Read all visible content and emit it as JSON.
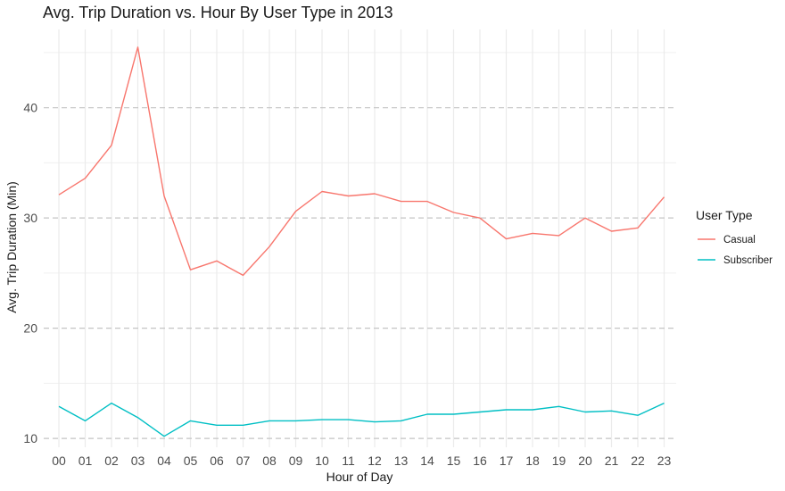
{
  "chart_data": {
    "type": "line",
    "title": "Avg. Trip Duration vs. Hour By User Type in 2013",
    "xlabel": "Hour of Day",
    "ylabel": "Avg. Trip Duration (Min)",
    "categories": [
      "00",
      "01",
      "02",
      "03",
      "04",
      "05",
      "06",
      "07",
      "08",
      "09",
      "10",
      "11",
      "12",
      "13",
      "14",
      "15",
      "16",
      "17",
      "18",
      "19",
      "20",
      "21",
      "22",
      "23"
    ],
    "yticks": [
      10,
      20,
      30,
      40
    ],
    "ylim": [
      9.2,
      47.1
    ],
    "grid": true,
    "legend": {
      "title": "User Type",
      "position": "right"
    },
    "series": [
      {
        "name": "Casual",
        "color": "#F8766D",
        "values": [
          32.1,
          33.6,
          36.6,
          45.5,
          32.0,
          25.3,
          26.1,
          24.8,
          27.4,
          30.6,
          32.4,
          32.0,
          32.2,
          31.5,
          31.5,
          30.5,
          30.0,
          28.1,
          28.6,
          28.4,
          30.0,
          28.8,
          29.1,
          31.9
        ]
      },
      {
        "name": "Subscriber",
        "color": "#00BFC4",
        "values": [
          12.9,
          11.6,
          13.2,
          11.9,
          10.2,
          11.6,
          11.2,
          11.2,
          11.6,
          11.6,
          11.7,
          11.7,
          11.5,
          11.6,
          12.2,
          12.2,
          12.4,
          12.6,
          12.6,
          12.9,
          12.4,
          12.5,
          12.1,
          13.2
        ]
      }
    ]
  }
}
